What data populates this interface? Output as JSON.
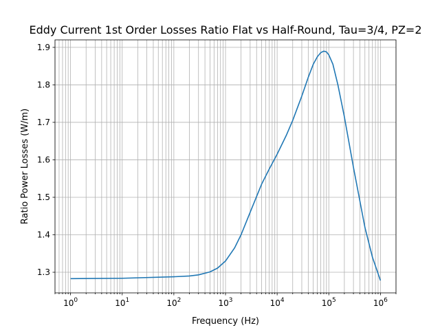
{
  "chart_data": {
    "type": "line",
    "title": "Eddy Current 1st Order Losses Ratio Flat vs Half-Round, Tau=3/4, PZ=2",
    "xlabel": "Frequency (Hz)",
    "ylabel": "Ratio Power Losses (W/m)",
    "xscale": "log",
    "xlim": [
      0.5,
      2000000
    ],
    "ylim": [
      1.245,
      1.92
    ],
    "grid": "both-major-and-minor-x, major-y",
    "x_ticks": [
      {
        "value": 1,
        "base": "10",
        "exp": "0"
      },
      {
        "value": 10,
        "base": "10",
        "exp": "1"
      },
      {
        "value": 100,
        "base": "10",
        "exp": "2"
      },
      {
        "value": 1000,
        "base": "10",
        "exp": "3"
      },
      {
        "value": 10000,
        "base": "10",
        "exp": "4"
      },
      {
        "value": 100000,
        "base": "10",
        "exp": "5"
      },
      {
        "value": 1000000,
        "base": "10",
        "exp": "6"
      }
    ],
    "y_ticks": [
      "1.3",
      "1.4",
      "1.5",
      "1.6",
      "1.7",
      "1.8",
      "1.9"
    ],
    "series": [
      {
        "color": "#1f77b4",
        "x": [
          1,
          10,
          100,
          200,
          300,
          500,
          700,
          1000,
          1500,
          2000,
          3000,
          5000,
          7000,
          10000,
          15000,
          20000,
          30000,
          40000,
          50000,
          60000,
          70000,
          80000,
          90000,
          100000,
          120000,
          150000,
          200000,
          300000,
          500000,
          700000,
          1000000
        ],
        "y": [
          1.283,
          1.284,
          1.288,
          1.29,
          1.293,
          1.301,
          1.311,
          1.33,
          1.365,
          1.4,
          1.46,
          1.535,
          1.575,
          1.615,
          1.665,
          1.705,
          1.77,
          1.82,
          1.855,
          1.875,
          1.886,
          1.89,
          1.888,
          1.88,
          1.855,
          1.8,
          1.715,
          1.58,
          1.42,
          1.34,
          1.278
        ]
      }
    ]
  }
}
